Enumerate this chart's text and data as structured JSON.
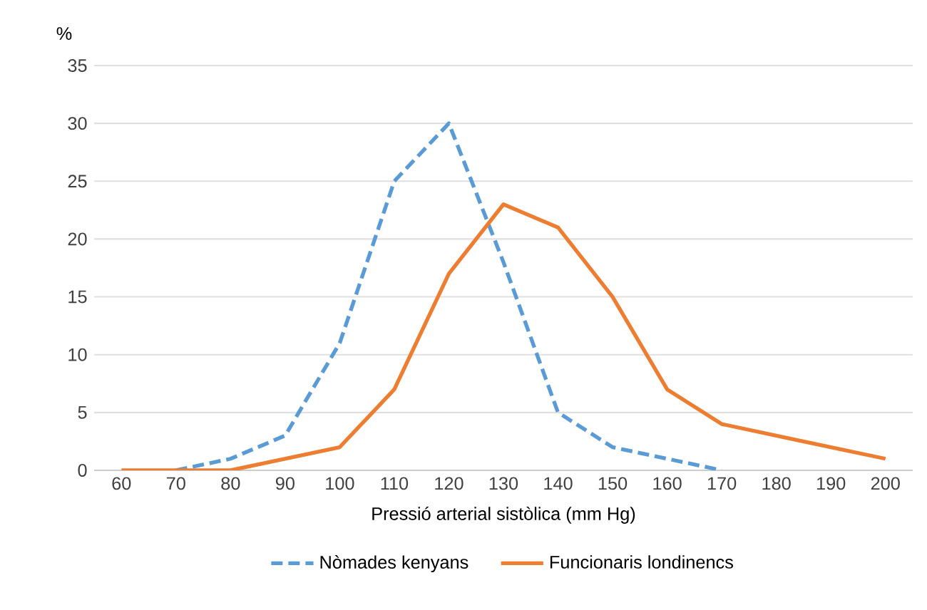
{
  "chart_data": {
    "type": "line",
    "ylabel": "%",
    "xlabel": "Pressió arterial sistòlica (mm Hg)",
    "categories": [
      "60",
      "70",
      "80",
      "90",
      "100",
      "110",
      "120",
      "130",
      "140",
      "150",
      "160",
      "170",
      "180",
      "190",
      "200"
    ],
    "ylim": [
      0,
      35
    ],
    "yticks": [
      0,
      5,
      10,
      15,
      20,
      25,
      30,
      35
    ],
    "grid": "y",
    "legend": "bottom",
    "series": [
      {
        "name": "Nòmades kenyans",
        "color": "#5b9bd5",
        "line_style": "dashed",
        "values": [
          null,
          0,
          1,
          3,
          11,
          25,
          30,
          18,
          5,
          2,
          1,
          0,
          null,
          null,
          null
        ]
      },
      {
        "name": "Funcionaris londinencs",
        "color": "#ed7d31",
        "line_style": "solid",
        "values": [
          0,
          0,
          0,
          1,
          2,
          7,
          17,
          23,
          21,
          15,
          7,
          4,
          3,
          2,
          1
        ]
      }
    ]
  }
}
